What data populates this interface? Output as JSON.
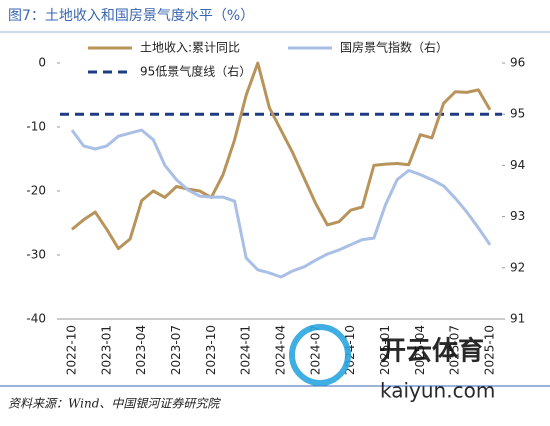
{
  "chart_data": {
    "type": "line",
    "title": "图7：土地收入和国房景气度水平（%）",
    "source": "资料来源：Wind、中国银河证券研究院",
    "categories": [
      "2022-10",
      null,
      null,
      "2023-01",
      null,
      null,
      "2023-04",
      null,
      null,
      "2023-07",
      null,
      null,
      "2023-10",
      null,
      null,
      "2024-01",
      null,
      null,
      "2024-04",
      null,
      null,
      "2024-07",
      null,
      null,
      "2024-10",
      null,
      null,
      "2025-01",
      null,
      null,
      "2025-04",
      null,
      null,
      "2025-07",
      null,
      null,
      "2025-10"
    ],
    "ylim": [
      -40,
      0
    ],
    "yticks": [
      0,
      -10,
      -20,
      -30,
      -40
    ],
    "y2lim": [
      91,
      96
    ],
    "y2ticks": [
      91,
      92,
      93,
      94,
      95,
      96
    ],
    "series": [
      {
        "name": "土地收入:累计同比",
        "color": "#b8935a",
        "values": [
          -26,
          -24.5,
          -23.3,
          -26,
          -29,
          -27.5,
          -21.5,
          -20,
          -21,
          -19.3,
          -19.7,
          -20,
          -21,
          -17.5,
          -12,
          -5,
          0,
          -7,
          -10.5,
          -14,
          -18,
          -22,
          -25.3,
          -24.8,
          -23,
          -22.5,
          -16,
          -15.8,
          -15.7,
          -15.9,
          -11.2,
          -11.7,
          -6.3,
          -4.5,
          -4.6,
          -4.2,
          -7.3
        ]
      },
      {
        "name": "国房景气指数（右）",
        "color": "#a9bfe6",
        "axis": "y2",
        "values": [
          94.69,
          94.38,
          94.32,
          94.38,
          94.57,
          94.63,
          94.69,
          94.5,
          94.0,
          93.72,
          93.52,
          93.4,
          93.38,
          93.38,
          93.3,
          92.19,
          91.96,
          91.9,
          91.82,
          91.94,
          92.02,
          92.15,
          92.27,
          92.35,
          92.45,
          92.55,
          92.58,
          93.23,
          93.72,
          93.9,
          93.82,
          93.72,
          93.6,
          93.36,
          93.09,
          92.78,
          92.45
        ]
      }
    ],
    "reference_line": {
      "name": "95低景气度线（右）",
      "value": 95,
      "axis": "y2",
      "color": "#1f3b82"
    },
    "watermark": [
      "开云体育",
      "kaiyun.com"
    ]
  }
}
